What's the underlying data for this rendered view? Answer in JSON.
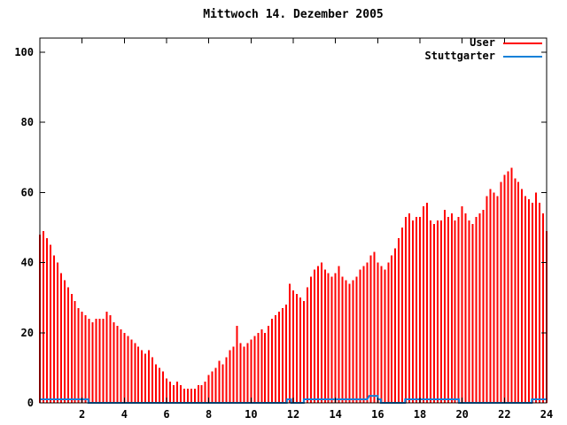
{
  "title": "Mittwoch 14. Dezember 2005",
  "colors": {
    "background": "#ffffff",
    "axis": "#000000",
    "user": "#ff0000",
    "stuttgarter": "#1080d8"
  },
  "chart_data": {
    "type": "bar",
    "title": "Mittwoch 14. Dezember 2005",
    "xlabel": "",
    "ylabel": "",
    "xlim": [
      0,
      24
    ],
    "ylim": [
      0,
      104
    ],
    "x_ticks": [
      2,
      4,
      6,
      8,
      10,
      12,
      14,
      16,
      18,
      20,
      22,
      24
    ],
    "y_ticks": [
      0,
      20,
      40,
      60,
      80,
      100
    ],
    "grid": false,
    "legend_position": "top-right",
    "series": [
      {
        "name": "User",
        "style": "impulses",
        "color": "#ff0000",
        "start_hour": 0,
        "step_hours": 0.166667,
        "values": [
          48,
          49,
          47,
          45,
          42,
          40,
          37,
          35,
          33,
          31,
          29,
          27,
          26,
          25,
          24,
          23,
          24,
          24,
          24,
          26,
          25,
          23,
          22,
          21,
          20,
          19,
          18,
          17,
          16,
          15,
          14,
          15,
          13,
          11,
          10,
          9,
          7,
          6,
          5,
          6,
          5,
          4,
          4,
          4,
          4,
          5,
          5,
          6,
          8,
          9,
          10,
          12,
          11,
          13,
          15,
          16,
          22,
          17,
          16,
          17,
          18,
          19,
          20,
          21,
          20,
          22,
          24,
          25,
          26,
          27,
          28,
          34,
          32,
          31,
          30,
          29,
          33,
          36,
          38,
          39,
          40,
          38,
          37,
          36,
          37,
          39,
          36,
          35,
          34,
          35,
          36,
          38,
          39,
          40,
          42,
          43,
          40,
          39,
          38,
          40,
          42,
          44,
          47,
          50,
          53,
          54,
          52,
          53,
          53,
          56,
          57,
          52,
          51,
          52,
          52,
          55,
          53,
          54,
          52,
          53,
          56,
          54,
          52,
          51,
          53,
          54,
          55,
          59,
          61,
          60,
          59,
          63,
          65,
          66,
          67,
          64,
          63,
          61,
          59,
          58,
          57,
          60,
          57,
          54,
          49
        ]
      },
      {
        "name": "Stuttgarter",
        "style": "line",
        "color": "#1080d8",
        "points": [
          [
            0,
            1
          ],
          [
            2.3,
            1
          ],
          [
            2.3,
            0
          ],
          [
            11.7,
            0
          ],
          [
            11.7,
            1
          ],
          [
            11.9,
            1
          ],
          [
            11.9,
            0
          ],
          [
            12.5,
            0
          ],
          [
            12.5,
            1
          ],
          [
            15.5,
            1
          ],
          [
            15.6,
            2
          ],
          [
            16.0,
            2
          ],
          [
            16.0,
            1
          ],
          [
            16.15,
            1
          ],
          [
            16.15,
            0
          ],
          [
            17.3,
            0
          ],
          [
            17.3,
            1
          ],
          [
            19.85,
            1
          ],
          [
            19.85,
            0
          ],
          [
            23.3,
            0
          ],
          [
            23.3,
            1
          ],
          [
            24,
            1
          ]
        ]
      }
    ]
  }
}
